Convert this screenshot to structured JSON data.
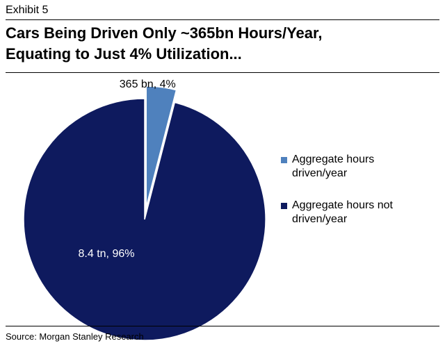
{
  "header": {
    "exhibit": "Exhibit 5",
    "title_line1": "Cars Being Driven Only ~365bn Hours/Year,",
    "title_line2": "Equating to Just 4% Utilization..."
  },
  "footer": {
    "source": "Source: Morgan Stanley Research"
  },
  "chart_data": {
    "type": "pie",
    "title": "",
    "series": [
      {
        "name": "Aggregate hours driven/year",
        "value": 4,
        "label": "365 bn, 4%",
        "color": "#4f81bd"
      },
      {
        "name": "Aggregate hours not driven/year",
        "value": 96,
        "label": "8.4 tn, 96%",
        "color": "#0e1a5e"
      }
    ],
    "legend": {
      "placement": "right",
      "items": [
        {
          "line1": "Aggregate hours",
          "line2": "driven/year"
        },
        {
          "line1": "Aggregate hours not",
          "line2": "driven/year"
        }
      ]
    }
  }
}
